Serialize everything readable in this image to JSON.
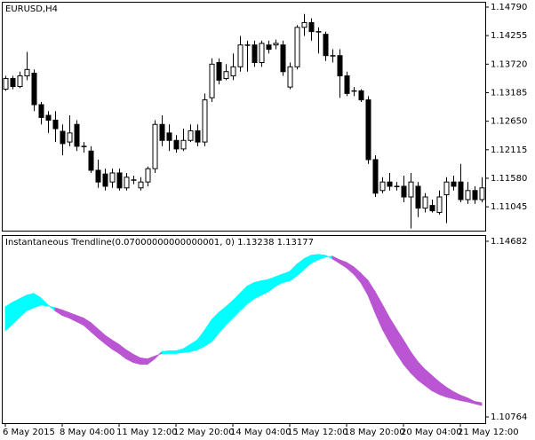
{
  "chart_data": [
    {
      "type": "candlestick",
      "title": "EURUSD,H4",
      "ylim": [
        1.10598,
        1.14873
      ],
      "yticks": [
        {
          "value": 1.1479,
          "label": "1.14790"
        },
        1.14255,
        {
          "value": 1.1372,
          "label": "1.13720"
        },
        1.13185,
        {
          "value": 1.1265,
          "label": "1.12650"
        },
        1.12115,
        {
          "value": 1.1158,
          "label": "1.11580"
        },
        1.11045
      ],
      "bull_color": "#ffffff",
      "bear_color": "#000000",
      "open": [
        1.1325,
        1.1345,
        1.133,
        1.135,
        1.1355,
        1.1296,
        1.1276,
        1.1267,
        1.1246,
        1.1226,
        1.1259,
        1.1218,
        1.1209,
        1.1173,
        1.1166,
        1.1151,
        1.1168,
        1.114,
        1.1155,
        1.114,
        1.1151,
        1.1176,
        1.1259,
        1.1243,
        1.1229,
        1.1213,
        1.1229,
        1.1247,
        1.1226,
        1.1309,
        1.1375,
        1.1345,
        1.135,
        1.1367,
        1.1408,
        1.1408,
        1.1375,
        1.1408,
        1.1408,
        1.1408,
        1.1329,
        1.1367,
        1.1441,
        1.145,
        1.1433,
        1.1428,
        1.1388,
        1.1388,
        1.135,
        1.1322,
        1.1322,
        1.1305,
        1.1193,
        1.1135,
        1.1151,
        1.1143,
        1.1143,
        1.1123,
        1.1143,
        1.1102,
        1.1107,
        1.1094,
        1.1127,
        1.1151,
        1.1151,
        1.1118,
        1.1135,
        1.1118
      ],
      "high": [
        1.135,
        1.135,
        1.1358,
        1.1395,
        1.1362,
        1.1301,
        1.1284,
        1.1284,
        1.1259,
        1.1276,
        1.1267,
        1.1226,
        1.1218,
        1.1193,
        1.1176,
        1.1176,
        1.1176,
        1.1168,
        1.1163,
        1.116,
        1.118,
        1.1267,
        1.1276,
        1.1259,
        1.1239,
        1.1251,
        1.1259,
        1.1259,
        1.1317,
        1.1383,
        1.1383,
        1.1372,
        1.1392,
        1.1425,
        1.1416,
        1.1416,
        1.1416,
        1.1416,
        1.1418,
        1.1416,
        1.1375,
        1.1445,
        1.1466,
        1.1458,
        1.1441,
        1.1433,
        1.14,
        1.14,
        1.1358,
        1.1329,
        1.1325,
        1.1312,
        1.1201,
        1.116,
        1.1168,
        1.1151,
        1.1163,
        1.1168,
        1.1151,
        1.113,
        1.1118,
        1.1135,
        1.116,
        1.1163,
        1.1185,
        1.1151,
        1.1143,
        1.116
      ],
      "low": [
        1.1322,
        1.1325,
        1.1327,
        1.1342,
        1.1284,
        1.1259,
        1.1243,
        1.1226,
        1.1201,
        1.1218,
        1.1209,
        1.1206,
        1.1168,
        1.114,
        1.1135,
        1.114,
        1.1135,
        1.1135,
        1.1147,
        1.1135,
        1.1143,
        1.1168,
        1.1218,
        1.1209,
        1.1206,
        1.1209,
        1.1226,
        1.1218,
        1.1218,
        1.1301,
        1.1334,
        1.1342,
        1.1342,
        1.1358,
        1.1358,
        1.1367,
        1.1367,
        1.1392,
        1.14,
        1.135,
        1.1325,
        1.1362,
        1.1425,
        1.1416,
        1.1392,
        1.1378,
        1.1375,
        1.1309,
        1.1312,
        1.1312,
        1.1301,
        1.1185,
        1.1123,
        1.113,
        1.1135,
        1.1135,
        1.1113,
        1.1064,
        1.1085,
        1.1094,
        1.1094,
        1.109,
        1.1074,
        1.1135,
        1.1113,
        1.111,
        1.111,
        1.1113
      ],
      "close": [
        1.1345,
        1.133,
        1.135,
        1.1362,
        1.1296,
        1.1272,
        1.1267,
        1.1251,
        1.1223,
        1.1243,
        1.1218,
        1.1218,
        1.1173,
        1.1151,
        1.1143,
        1.1168,
        1.114,
        1.116,
        1.1155,
        1.1151,
        1.1176,
        1.1259,
        1.1229,
        1.1229,
        1.1213,
        1.1229,
        1.1247,
        1.1226,
        1.1305,
        1.1372,
        1.1342,
        1.1358,
        1.1367,
        1.1408,
        1.1408,
        1.1375,
        1.1411,
        1.14,
        1.1411,
        1.1358,
        1.1367,
        1.1441,
        1.145,
        1.1433,
        1.1433,
        1.1388,
        1.1388,
        1.135,
        1.1317,
        1.1322,
        1.1305,
        1.1193,
        1.113,
        1.1151,
        1.1143,
        1.1143,
        1.1123,
        1.1151,
        1.1102,
        1.1123,
        1.1097,
        1.1123,
        1.1151,
        1.1143,
        1.1118,
        1.1135,
        1.1118,
        1.114
      ]
    },
    {
      "type": "band",
      "title": "Instantaneous Trendline(0.07000000000000001, 0) 1.13238 1.13177",
      "ylim": [
        1.10626,
        1.148
      ],
      "yticks": [
        1.14682,
        1.10764
      ],
      "up_color": "#00ffff",
      "down_color": "#ba55d3",
      "categories": [
        "6 May 2015",
        null,
        null,
        null,
        null,
        null,
        null,
        null,
        "8 May 04:00",
        null,
        null,
        null,
        null,
        null,
        null,
        null,
        "11 May 12:00",
        null,
        null,
        null,
        null,
        null,
        null,
        null,
        "12 May 20:00",
        null,
        null,
        null,
        null,
        null,
        null,
        null,
        "14 May 04:00",
        null,
        null,
        null,
        null,
        null,
        null,
        null,
        "15 May 12:00",
        null,
        null,
        null,
        null,
        null,
        null,
        null,
        "18 May 20:00",
        null,
        null,
        null,
        null,
        null,
        null,
        null,
        "20 May 04:00",
        null,
        null,
        null,
        null,
        null,
        null,
        null,
        "21 May 12:00",
        null,
        null,
        null
      ],
      "series": [
        {
          "values": [
            1.1322,
            1.1332,
            1.134,
            1.1348,
            1.1352,
            1.1342,
            1.1326,
            1.1313,
            1.1303,
            1.1297,
            1.1289,
            1.1281,
            1.1267,
            1.1253,
            1.124,
            1.1228,
            1.1218,
            1.1206,
            1.1198,
            1.1194,
            1.1194,
            1.1206,
            1.1222,
            1.1224,
            1.1224,
            1.1228,
            1.1238,
            1.1248,
            1.1269,
            1.1293,
            1.1309,
            1.1322,
            1.1336,
            1.1352,
            1.1368,
            1.1376,
            1.138,
            1.1383,
            1.1389,
            1.1395,
            1.1401,
            1.1417,
            1.1429,
            1.1437,
            1.1439,
            1.1437,
            1.1429,
            1.1419,
            1.1409,
            1.1395,
            1.1376,
            1.1348,
            1.1309,
            1.1273,
            1.1244,
            1.1218,
            1.1194,
            1.1175,
            1.1159,
            1.1147,
            1.1135,
            1.1127,
            1.1121,
            1.1117,
            1.1113,
            1.111,
            1.1106,
            1.1102
          ]
        },
        {
          "values": [
            1.1269,
            1.1283,
            1.1299,
            1.1313,
            1.132,
            1.1326,
            1.1324,
            1.132,
            1.1315,
            1.1309,
            1.1303,
            1.1297,
            1.1287,
            1.1273,
            1.1259,
            1.1248,
            1.1238,
            1.1226,
            1.1216,
            1.1208,
            1.1206,
            1.1212,
            1.1218,
            1.1218,
            1.1218,
            1.122,
            1.1222,
            1.1226,
            1.1234,
            1.1244,
            1.1263,
            1.1281,
            1.1297,
            1.1313,
            1.1328,
            1.134,
            1.1348,
            1.1356,
            1.1368,
            1.1376,
            1.138,
            1.1391,
            1.1405,
            1.1419,
            1.1427,
            1.1433,
            1.1435,
            1.1427,
            1.1421,
            1.1411,
            1.1397,
            1.1381,
            1.1356,
            1.1328,
            1.1299,
            1.1273,
            1.1248,
            1.1222,
            1.12,
            1.1183,
            1.1169,
            1.1155,
            1.1143,
            1.1133,
            1.1125,
            1.1119,
            1.1111,
            1.1108
          ]
        }
      ]
    }
  ]
}
